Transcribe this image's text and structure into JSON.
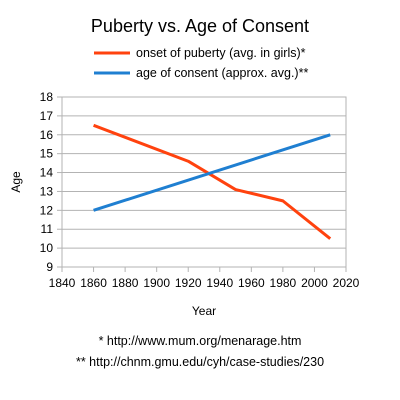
{
  "chart_data": {
    "type": "line",
    "title": "Puberty vs. Age of Consent",
    "xlabel": "Year",
    "ylabel": "Age",
    "xlim": [
      1840,
      2020
    ],
    "ylim": [
      9,
      18
    ],
    "x_ticks": [
      1840,
      1860,
      1880,
      1900,
      1920,
      1940,
      1960,
      1980,
      2000,
      2020
    ],
    "y_ticks": [
      9,
      10,
      11,
      12,
      13,
      14,
      15,
      16,
      17,
      18
    ],
    "grid": true,
    "legend_position": "top",
    "series": [
      {
        "name": "onset of puberty (avg. in girls)*",
        "color": "#ff420e",
        "x": [
          1860,
          1920,
          1950,
          1980,
          2010
        ],
        "y": [
          16.5,
          14.6,
          13.1,
          12.5,
          10.5
        ]
      },
      {
        "name": "age of consent (approx. avg.)**",
        "color": "#1f7fd1",
        "x": [
          1860,
          2010
        ],
        "y": [
          12,
          16
        ]
      }
    ]
  },
  "footnotes": [
    "* http://www.mum.org/menarage.htm",
    "** http://chnm.gmu.edu/cyh/case-studies/230"
  ]
}
